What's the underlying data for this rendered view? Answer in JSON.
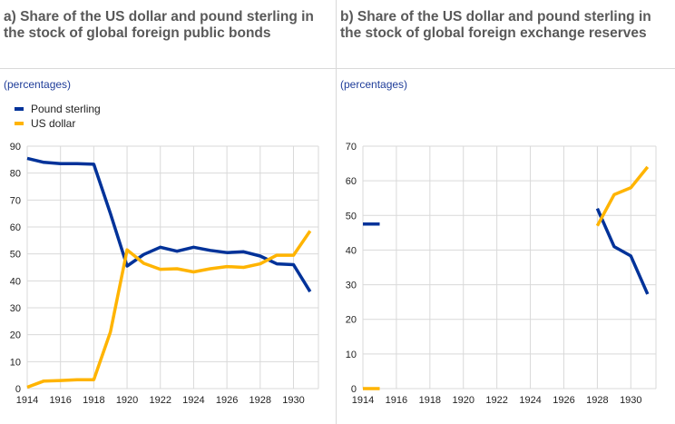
{
  "colors": {
    "pound_sterling": "#003299",
    "us_dollar": "#ffb400",
    "grid": "#d9d9d9"
  },
  "chart_data": [
    {
      "type": "line",
      "title": "a) Share of the US dollar and pound sterling in the stock of global foreign public bonds",
      "unit_label": "(percentages)",
      "legend_placement": "top-left",
      "grid": true,
      "xlim": [
        1914,
        1931.5
      ],
      "ylim": [
        0,
        90
      ],
      "x_ticks": [
        1914,
        1916,
        1918,
        1920,
        1922,
        1924,
        1926,
        1928,
        1930
      ],
      "y_ticks": [
        0,
        10,
        20,
        30,
        40,
        50,
        60,
        70,
        80,
        90
      ],
      "series": [
        {
          "name": "Pound sterling",
          "points": [
            [
              1914,
              85.5
            ],
            [
              1915,
              84
            ],
            [
              1916,
              83.5
            ],
            [
              1917,
              83.5
            ],
            [
              1918,
              83.3
            ],
            [
              1919,
              65
            ],
            [
              1920,
              45.5
            ],
            [
              1921,
              49.8
            ],
            [
              1922,
              52.5
            ],
            [
              1923,
              51
            ],
            [
              1924,
              52.5
            ],
            [
              1925,
              51.3
            ],
            [
              1926,
              50.5
            ],
            [
              1927,
              50.8
            ],
            [
              1928,
              49.2
            ],
            [
              1929,
              46.3
            ],
            [
              1930,
              46
            ],
            [
              1931,
              36
            ]
          ]
        },
        {
          "name": "US dollar",
          "points": [
            [
              1914,
              0.5
            ],
            [
              1915,
              2.8
            ],
            [
              1916,
              3
            ],
            [
              1917,
              3.3
            ],
            [
              1918,
              3.3
            ],
            [
              1919,
              21
            ],
            [
              1920,
              51.5
            ],
            [
              1921,
              46.5
            ],
            [
              1922,
              44.3
            ],
            [
              1923,
              44.5
            ],
            [
              1924,
              43.3
            ],
            [
              1925,
              44.5
            ],
            [
              1926,
              45.3
            ],
            [
              1927,
              45
            ],
            [
              1928,
              46.3
            ],
            [
              1929,
              49.5
            ],
            [
              1930,
              49.5
            ],
            [
              1931,
              58.5
            ]
          ]
        }
      ]
    },
    {
      "type": "line",
      "title": "b) Share of the US dollar and pound sterling in the stock of global foreign exchange reserves",
      "unit_label": "(percentages)",
      "grid": true,
      "xlim": [
        1914,
        1931.5
      ],
      "ylim": [
        0,
        70
      ],
      "x_ticks": [
        1914,
        1916,
        1918,
        1920,
        1922,
        1924,
        1926,
        1928,
        1930
      ],
      "y_ticks": [
        0,
        10,
        20,
        30,
        40,
        50,
        60,
        70
      ],
      "series": [
        {
          "name": "Pound sterling",
          "segments": [
            [
              [
                1914,
                47.5
              ],
              [
                1915,
                47.5
              ]
            ],
            [
              [
                1928,
                52
              ],
              [
                1929,
                41
              ],
              [
                1930,
                38.3
              ],
              [
                1931,
                27.3
              ]
            ]
          ]
        },
        {
          "name": "US dollar",
          "segments": [
            [
              [
                1914,
                0
              ],
              [
                1915,
                0
              ]
            ],
            [
              [
                1928,
                47
              ],
              [
                1929,
                56
              ],
              [
                1930,
                58
              ],
              [
                1931,
                64
              ]
            ]
          ]
        }
      ]
    }
  ]
}
